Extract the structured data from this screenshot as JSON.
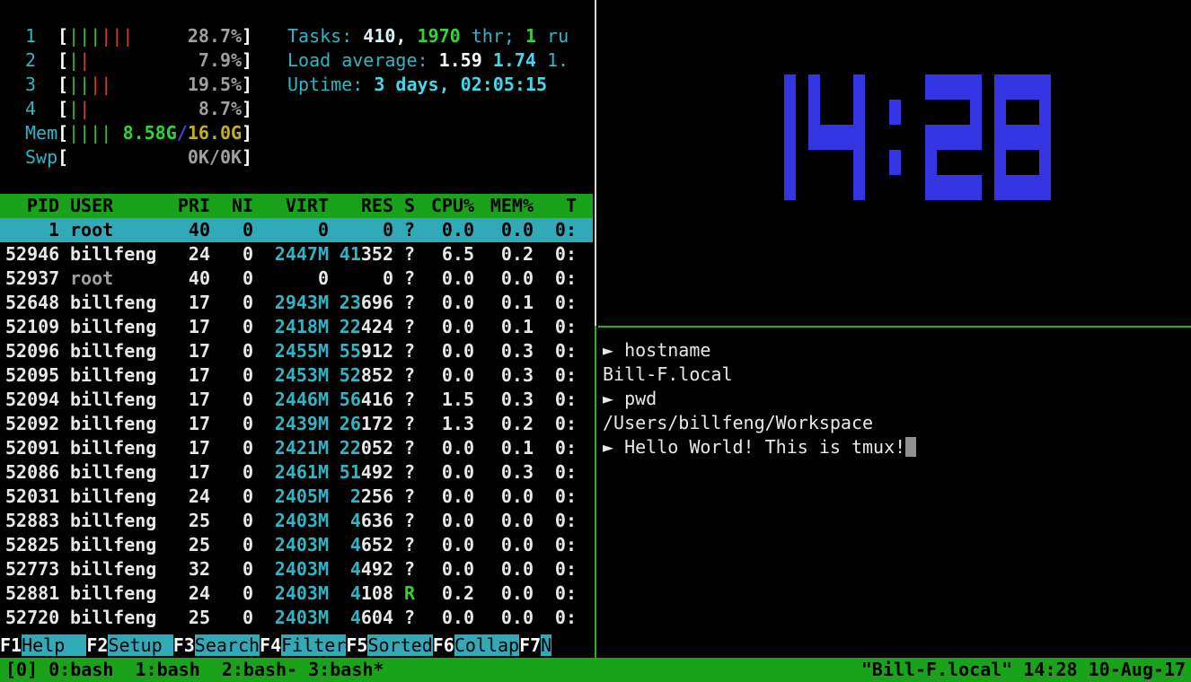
{
  "colors": {
    "cyan": "#2fb6c6",
    "cyanBright": "#45d8e8",
    "pale": "#d8f4f6",
    "green": "#36d136",
    "greenBar": "#2ec02e",
    "red": "#d23b28",
    "gray": "#9f9f9f",
    "white": "#e8e8e8",
    "yellow": "#c2b021",
    "blue": "#4646e0",
    "clockBlue": "#3434e2",
    "headerBg": "#1ba21b",
    "statusBg": "#1ba21b",
    "selBg": "#31a9b7",
    "fkeyBg": "#31a9b7",
    "borderGreen": "#24b324",
    "borderWhite": "#d8d8cc",
    "cursorGray": "#909090"
  },
  "htop": {
    "meters": {
      "cpus": [
        {
          "label": "1",
          "green": "|||",
          "red": "|||",
          "pct": "28.7%"
        },
        {
          "label": "2",
          "green": "|",
          "red": "|",
          "pct": "7.9%"
        },
        {
          "label": "3",
          "green": "||",
          "red": "||",
          "pct": "19.5%"
        },
        {
          "label": "4",
          "green": "|",
          "red": "|",
          "pct": "8.7%"
        }
      ],
      "mem": {
        "label": "Mem",
        "bars": "||||",
        "used": "8.58G",
        "slash": "/",
        "total": "16.0G"
      },
      "swp": {
        "label": "Swp",
        "bars": "",
        "value": "0K/0K"
      }
    },
    "summary_lines": [
      [
        {
          "t": "Tasks: ",
          "c": "cyan"
        },
        {
          "t": "410,",
          "c": "pale"
        },
        {
          "t": " ",
          "c": "cyan"
        },
        {
          "t": "1970",
          "c": "greenb"
        },
        {
          "t": " thr; ",
          "c": "cyan"
        },
        {
          "t": "1",
          "c": "greenb"
        },
        {
          "t": " ru",
          "c": "cyan"
        }
      ],
      [
        {
          "t": "Load average: ",
          "c": "cyan"
        },
        {
          "t": "1.59",
          "c": "whiteb"
        },
        {
          "t": " ",
          "c": "cyan"
        },
        {
          "t": "1.74",
          "c": "cyanb"
        },
        {
          "t": " ",
          "c": "cyan"
        },
        {
          "t": "1.",
          "c": "cyan"
        }
      ],
      [
        {
          "t": "Uptime: ",
          "c": "cyan"
        },
        {
          "t": "3 days, 02:05:15",
          "c": "cyanb"
        }
      ]
    ],
    "table": {
      "headers": [
        "PID",
        "USER",
        "PRI",
        "NI",
        "VIRT",
        "RES",
        "S",
        "CPU%",
        "MEM%",
        "T"
      ],
      "rows": [
        {
          "pid": "1",
          "user": "root",
          "pri": "40",
          "ni": "0",
          "virt": "0",
          "res_hi": "",
          "res": "0",
          "s": "?",
          "cpu": "0.0",
          "mem": "0.0",
          "time": "0:",
          "sel": true
        },
        {
          "pid": "52946",
          "user": "billfeng",
          "pri": "24",
          "ni": "0",
          "virt": "2447M",
          "res_hi": "41",
          "res": "352",
          "s": "?",
          "cpu": "6.5",
          "mem": "0.2",
          "time": "0:"
        },
        {
          "pid": "52937",
          "user": "root",
          "dim": true,
          "pri": "40",
          "ni": "0",
          "virt": "0",
          "res_hi": "",
          "res": "0",
          "s": "?",
          "cpu": "0.0",
          "mem": "0.0",
          "time": "0:"
        },
        {
          "pid": "52648",
          "user": "billfeng",
          "pri": "17",
          "ni": "0",
          "virt": "2943M",
          "res_hi": "23",
          "res": "696",
          "s": "?",
          "cpu": "0.0",
          "mem": "0.1",
          "time": "0:"
        },
        {
          "pid": "52109",
          "user": "billfeng",
          "pri": "17",
          "ni": "0",
          "virt": "2418M",
          "res_hi": "22",
          "res": "424",
          "s": "?",
          "cpu": "0.0",
          "mem": "0.1",
          "time": "0:"
        },
        {
          "pid": "52096",
          "user": "billfeng",
          "pri": "17",
          "ni": "0",
          "virt": "2455M",
          "res_hi": "55",
          "res": "912",
          "s": "?",
          "cpu": "0.0",
          "mem": "0.3",
          "time": "0:"
        },
        {
          "pid": "52095",
          "user": "billfeng",
          "pri": "17",
          "ni": "0",
          "virt": "2453M",
          "res_hi": "52",
          "res": "852",
          "s": "?",
          "cpu": "0.0",
          "mem": "0.3",
          "time": "0:"
        },
        {
          "pid": "52094",
          "user": "billfeng",
          "pri": "17",
          "ni": "0",
          "virt": "2446M",
          "res_hi": "56",
          "res": "416",
          "s": "?",
          "cpu": "1.5",
          "mem": "0.3",
          "time": "0:"
        },
        {
          "pid": "52092",
          "user": "billfeng",
          "pri": "17",
          "ni": "0",
          "virt": "2439M",
          "res_hi": "26",
          "res": "172",
          "s": "?",
          "cpu": "1.3",
          "mem": "0.2",
          "time": "0:"
        },
        {
          "pid": "52091",
          "user": "billfeng",
          "pri": "17",
          "ni": "0",
          "virt": "2421M",
          "res_hi": "22",
          "res": "052",
          "s": "?",
          "cpu": "0.0",
          "mem": "0.1",
          "time": "0:"
        },
        {
          "pid": "52086",
          "user": "billfeng",
          "pri": "17",
          "ni": "0",
          "virt": "2461M",
          "res_hi": "51",
          "res": "492",
          "s": "?",
          "cpu": "0.0",
          "mem": "0.3",
          "time": "0:"
        },
        {
          "pid": "52031",
          "user": "billfeng",
          "pri": "24",
          "ni": "0",
          "virt": "2405M",
          "res_hi": "2",
          "res": "256",
          "s": "?",
          "cpu": "0.0",
          "mem": "0.0",
          "time": "0:"
        },
        {
          "pid": "52883",
          "user": "billfeng",
          "pri": "25",
          "ni": "0",
          "virt": "2403M",
          "res_hi": "4",
          "res": "636",
          "s": "?",
          "cpu": "0.0",
          "mem": "0.0",
          "time": "0:"
        },
        {
          "pid": "52825",
          "user": "billfeng",
          "pri": "25",
          "ni": "0",
          "virt": "2403M",
          "res_hi": "4",
          "res": "652",
          "s": "?",
          "cpu": "0.0",
          "mem": "0.0",
          "time": "0:"
        },
        {
          "pid": "52773",
          "user": "billfeng",
          "pri": "32",
          "ni": "0",
          "virt": "2403M",
          "res_hi": "4",
          "res": "492",
          "s": "?",
          "cpu": "0.0",
          "mem": "0.0",
          "time": "0:"
        },
        {
          "pid": "52881",
          "user": "billfeng",
          "pri": "24",
          "ni": "0",
          "virt": "2403M",
          "res_hi": "4",
          "res": "108",
          "s": "R",
          "cpu": "0.2",
          "mem": "0.0",
          "time": "0:"
        },
        {
          "pid": "52720",
          "user": "billfeng",
          "pri": "25",
          "ni": "0",
          "virt": "2403M",
          "res_hi": "4",
          "res": "604",
          "s": "?",
          "cpu": "0.0",
          "mem": "0.0",
          "time": "0:"
        }
      ]
    },
    "fkeys": [
      {
        "key": "F1",
        "label": "Help  "
      },
      {
        "key": "F2",
        "label": "Setup "
      },
      {
        "key": "F3",
        "label": "Search"
      },
      {
        "key": "F4",
        "label": "Filter"
      },
      {
        "key": "F5",
        "label": "Sorted"
      },
      {
        "key": "F6",
        "label": "Collap"
      },
      {
        "key": "F7",
        "label": "N"
      }
    ]
  },
  "clock": {
    "time": "14:28"
  },
  "terminal": {
    "prompt_symbol": "►",
    "lines": [
      {
        "prompt": true,
        "text": "hostname"
      },
      {
        "text": "Bill-F.local"
      },
      {
        "prompt": true,
        "text": "pwd"
      },
      {
        "text": "/Users/billfeng/Workspace"
      },
      {
        "prompt": true,
        "text": "Hello World! This is tmux!",
        "cursor": true
      }
    ]
  },
  "statusbar": {
    "session": "[0] ",
    "windows": [
      "0:bash  ",
      "1:bash  ",
      "2:bash- ",
      "3:bash*"
    ],
    "right": "\"Bill-F.local\" 14:28 10-Aug-17"
  }
}
